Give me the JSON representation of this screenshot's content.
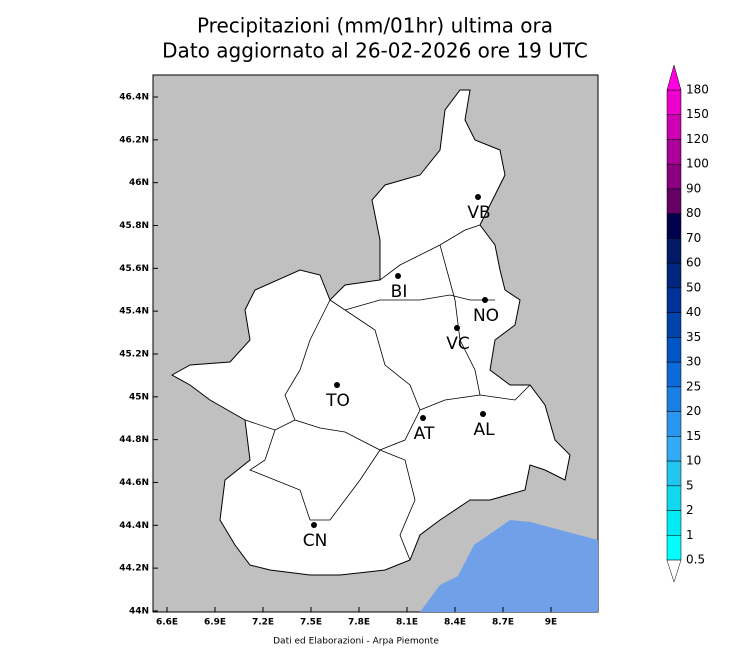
{
  "header": {
    "title": "Precipitazioni (mm/01hr) ultima ora",
    "subtitle": "Dato aggiornato al 26-02-2026 ore 19 UTC"
  },
  "map": {
    "lon_ticks": [
      "6.6E",
      "6.9E",
      "7.2E",
      "7.5E",
      "7.8E",
      "8.1E",
      "8.4E",
      "8.7E",
      "9E"
    ],
    "lat_ticks": [
      "46.4N",
      "46.2N",
      "46N",
      "45.8N",
      "45.6N",
      "45.4N",
      "45.2N",
      "45N",
      "44.8N",
      "44.6N",
      "44.4N",
      "44.2N",
      "44N"
    ],
    "cities": [
      "VB",
      "BI",
      "NO",
      "VC",
      "TO",
      "AT",
      "AL",
      "CN"
    ]
  },
  "colorbar": {
    "levels": [
      180,
      150,
      120,
      100,
      90,
      80,
      70,
      60,
      50,
      40,
      35,
      30,
      25,
      20,
      15,
      10,
      5,
      2,
      1,
      0.5
    ]
  },
  "footer": "Dati ed Elaborazioni - Arpa Piemonte"
}
